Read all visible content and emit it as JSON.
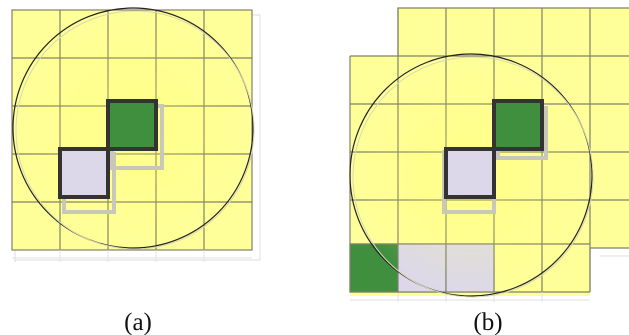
{
  "colors": {
    "yellow": "#ffff99",
    "grid_line": "#7a7a5a",
    "green": "#3f8f3f",
    "lavender": "#dcd8ea",
    "outline": "#333333",
    "circle": "#222222",
    "shadow": "#bdbdb0"
  },
  "panels": [
    {
      "label": "(a)",
      "highlighted_cells": [
        "green",
        "lavender"
      ]
    },
    {
      "label": "(b)",
      "highlighted_cells": [
        "green",
        "lavender"
      ],
      "bottom_row_cells": [
        "green",
        "lavender",
        "lavender"
      ]
    }
  ]
}
